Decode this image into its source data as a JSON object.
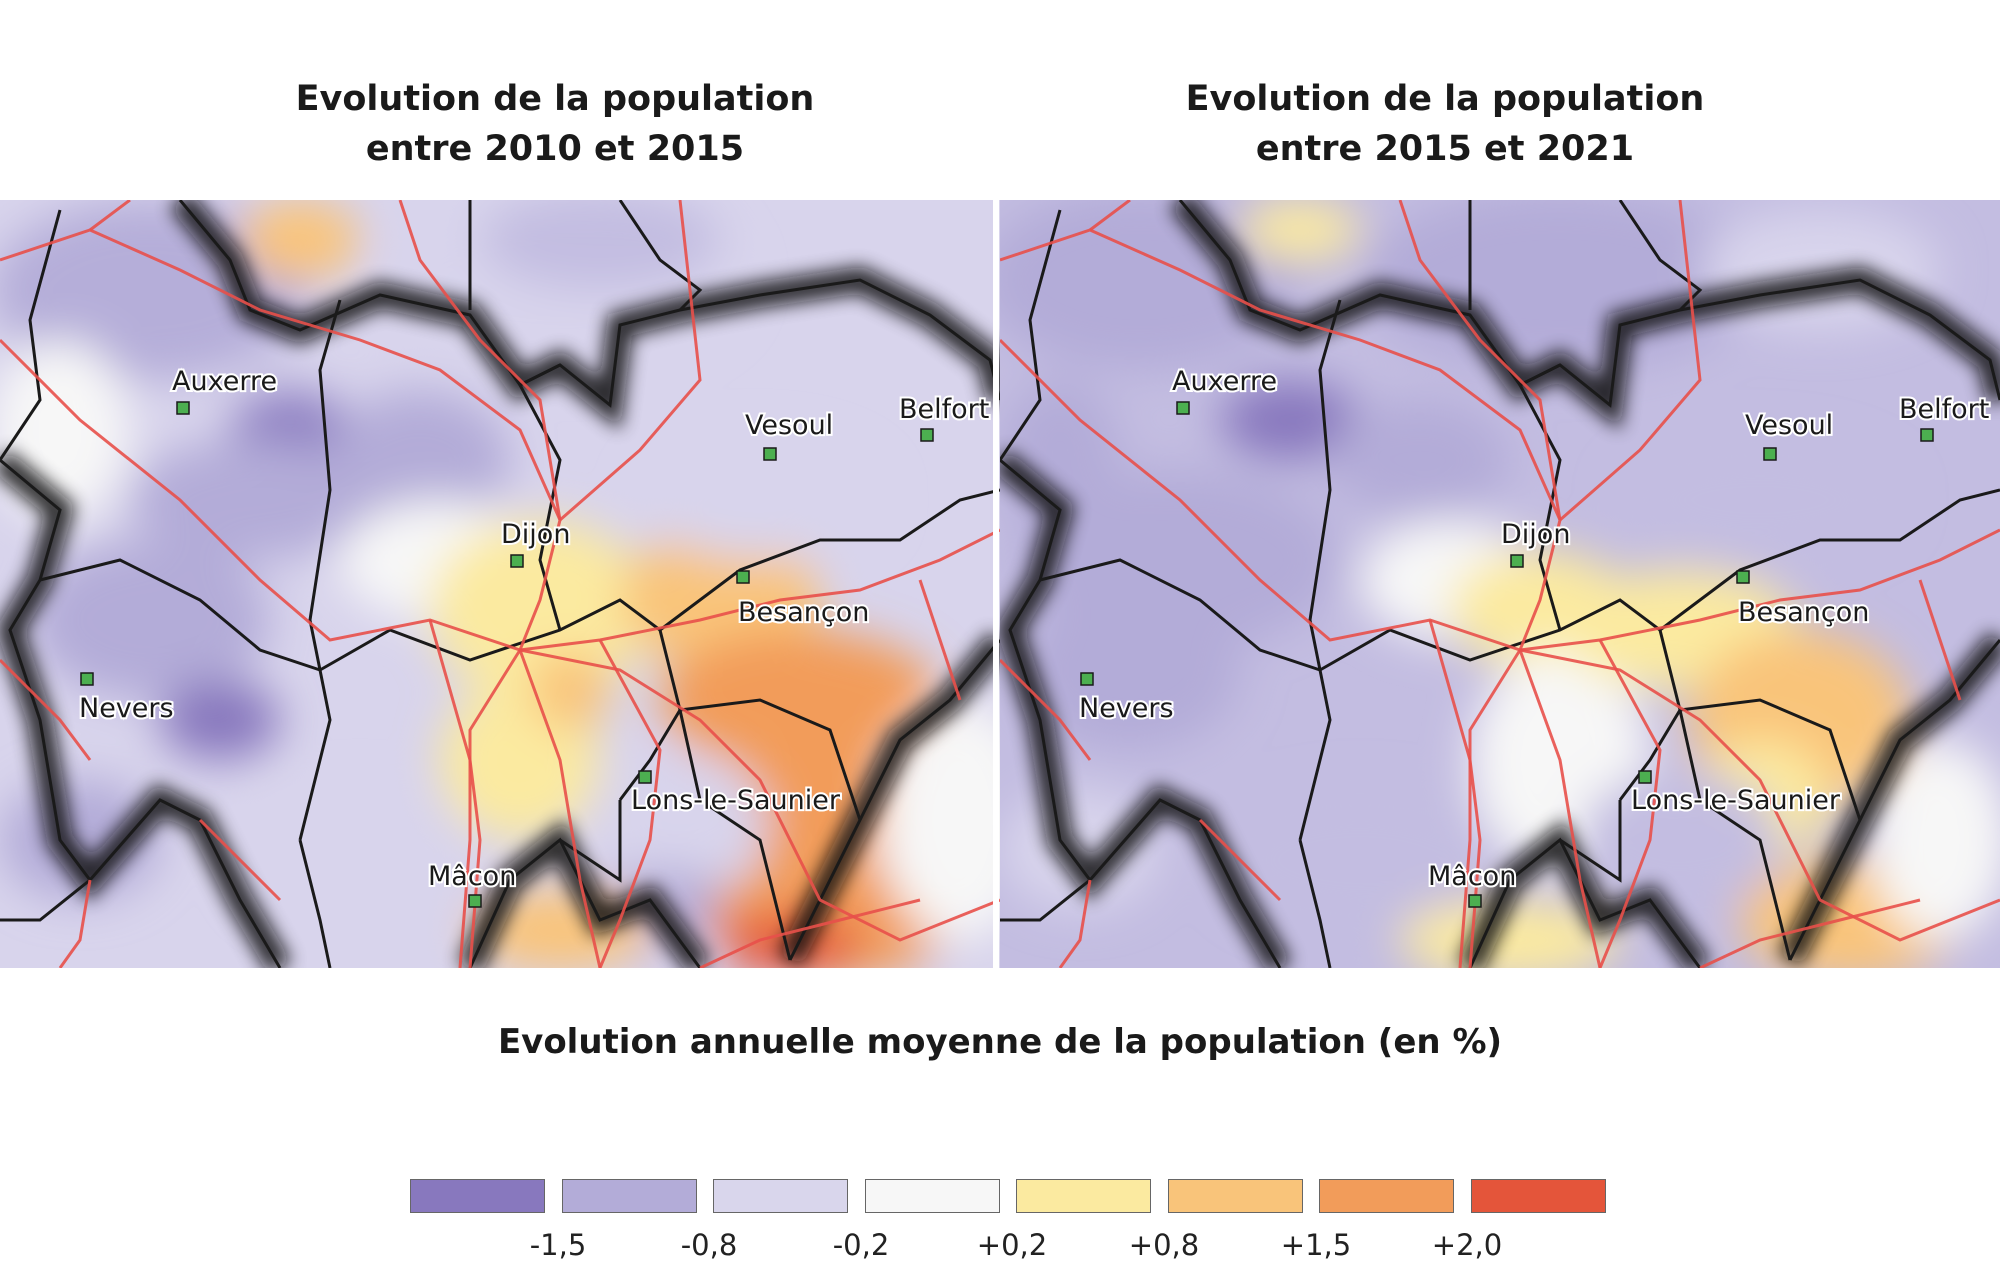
{
  "maps": [
    {
      "title_line1": "Evolution de la population",
      "title_line2": "entre 2010 et 2015",
      "cities": [
        {
          "name": "Auxerre"
        },
        {
          "name": "Vesoul"
        },
        {
          "name": "Belfort"
        },
        {
          "name": "Dijon"
        },
        {
          "name": "Besançon"
        },
        {
          "name": "Nevers"
        },
        {
          "name": "Lons-le-Saunier"
        },
        {
          "name": "Mâcon"
        }
      ]
    },
    {
      "title_line1": "Evolution de la population",
      "title_line2": "entre 2015 et 2021",
      "cities": [
        {
          "name": "Auxerre"
        },
        {
          "name": "Vesoul"
        },
        {
          "name": "Belfort"
        },
        {
          "name": "Dijon"
        },
        {
          "name": "Besançon"
        },
        {
          "name": "Nevers"
        },
        {
          "name": "Lons-le-Saunier"
        },
        {
          "name": "Mâcon"
        }
      ]
    }
  ],
  "legend": {
    "title": "Evolution annuelle moyenne de la population (en %)",
    "classes": [
      {
        "color": "#8878be"
      },
      {
        "color": "#b3acd8"
      },
      {
        "color": "#d9d6ec"
      },
      {
        "color": "#f7f7f7"
      },
      {
        "color": "#fbeaa0"
      },
      {
        "color": "#f9c47a"
      },
      {
        "color": "#f29c5a"
      },
      {
        "color": "#e4553a"
      }
    ],
    "breaks": [
      "-1,5",
      "-0,8",
      "-0,2",
      "+0,2",
      "+0,8",
      "+1,5",
      "+2,0"
    ]
  },
  "colors": {
    "road": "#e8504a",
    "border": "#1a1a1a",
    "city_marker": "#4caf50"
  }
}
